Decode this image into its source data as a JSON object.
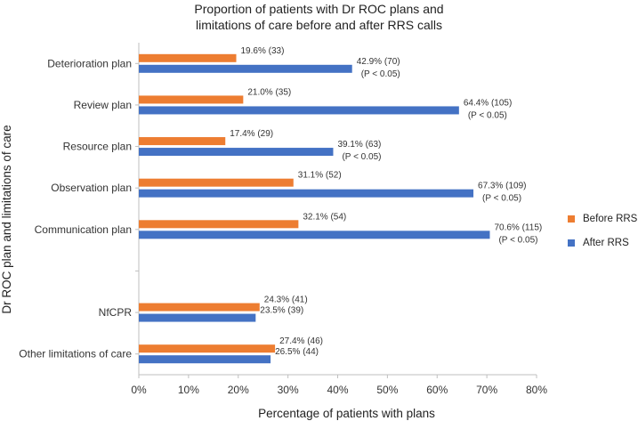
{
  "chart_data": {
    "type": "bar",
    "orientation": "horizontal",
    "title_line1": "Proportion of patients with Dr ROC plans and",
    "title_line2": "limitations of care before and after RRS calls",
    "xlabel": "Percentage of patients with plans",
    "ylabel": "Dr ROC plan and limitations of care",
    "xlim": [
      0,
      80
    ],
    "x_ticks": [
      "0%",
      "10%",
      "20%",
      "30%",
      "40%",
      "50%",
      "60%",
      "70%",
      "80%"
    ],
    "categories": [
      "Deterioration plan",
      "Review plan",
      "Resource plan",
      "Observation plan",
      "Communication plan",
      "",
      "NfCPR",
      "Other limitations of care"
    ],
    "series": [
      {
        "name": "Before RRS",
        "color": "#ED7D31",
        "values": [
          19.6,
          21.0,
          17.4,
          31.1,
          32.1,
          null,
          24.3,
          27.4
        ],
        "labels": [
          "19.6% (33)",
          "21.0% (35)",
          "17.4% (29)",
          "31.1% (52)",
          "32.1% (54)",
          "",
          "24.3% (41)",
          "27.4% (46)"
        ],
        "sublabels": [
          "",
          "",
          "",
          "",
          "",
          "",
          "",
          ""
        ]
      },
      {
        "name": "After RRS",
        "color": "#4472C4",
        "values": [
          42.9,
          64.4,
          39.1,
          67.3,
          70.6,
          null,
          23.5,
          26.5
        ],
        "labels": [
          "42.9% (70)",
          "64.4% (105)",
          "39.1% (63)",
          "67.3% (109)",
          "70.6% (115)",
          "",
          "23.5% (39)",
          "26.5% (44)"
        ],
        "sublabels": [
          "(P < 0.05)",
          "(P < 0.05)",
          "(P < 0.05)",
          "(P < 0.05)",
          "(P < 0.05)",
          "",
          "",
          ""
        ]
      }
    ],
    "legend": [
      "Before RRS",
      "After RRS"
    ],
    "legend_position": "right"
  }
}
